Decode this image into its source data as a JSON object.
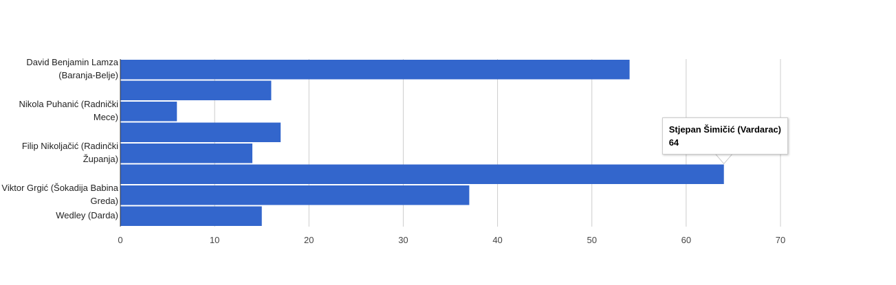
{
  "chart_data": {
    "type": "bar",
    "orientation": "horizontal",
    "categories": [
      "David Benjamin Lamza (Baranja-Belje)",
      null,
      "Nikola Puhanić (Radnički Mece)",
      null,
      "Filip Nikoljačić (Radinčki Županja)",
      null,
      "Viktor Grgić (Šokadija Babina Greda)",
      "Wedley (Darda)"
    ],
    "values": [
      54,
      16,
      6,
      17,
      14,
      64,
      37,
      15
    ],
    "color": "#3366cc",
    "xlim": [
      0,
      70
    ],
    "xticks": [
      0,
      10,
      20,
      30,
      40,
      50,
      60,
      70
    ],
    "grid": true,
    "tooltip": {
      "title": "Stjepan Šimičić (Vardarac)",
      "index": 5
    }
  }
}
